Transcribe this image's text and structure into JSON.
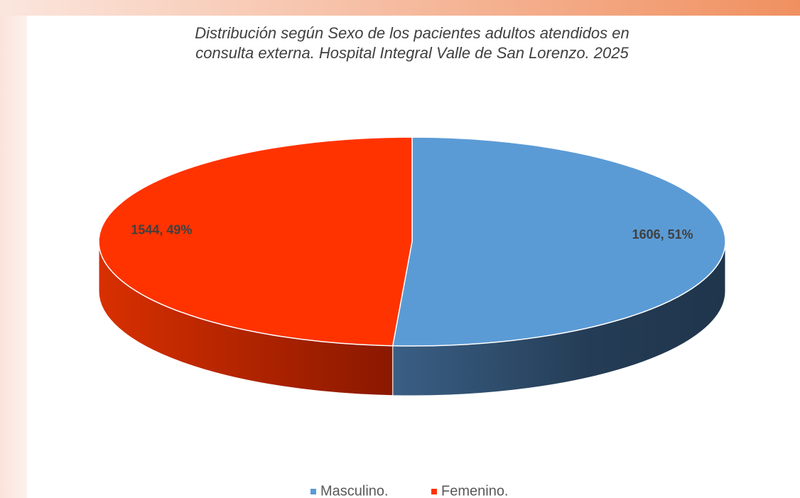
{
  "chart_data": {
    "type": "pie3d",
    "title": [
      "Distribución según Sexo de los pacientes adultos atendidos en",
      "consulta externa. Hospital Integral Valle de San Lorenzo. 2025"
    ],
    "categories": [
      "Masculino.",
      "Femenino."
    ],
    "values": [
      1606,
      1544
    ],
    "value_labels": [
      "1606, 51%",
      "1544, 49%"
    ],
    "colors": [
      "#5b9bd5",
      "#ff3300"
    ],
    "legend": "bottom"
  }
}
